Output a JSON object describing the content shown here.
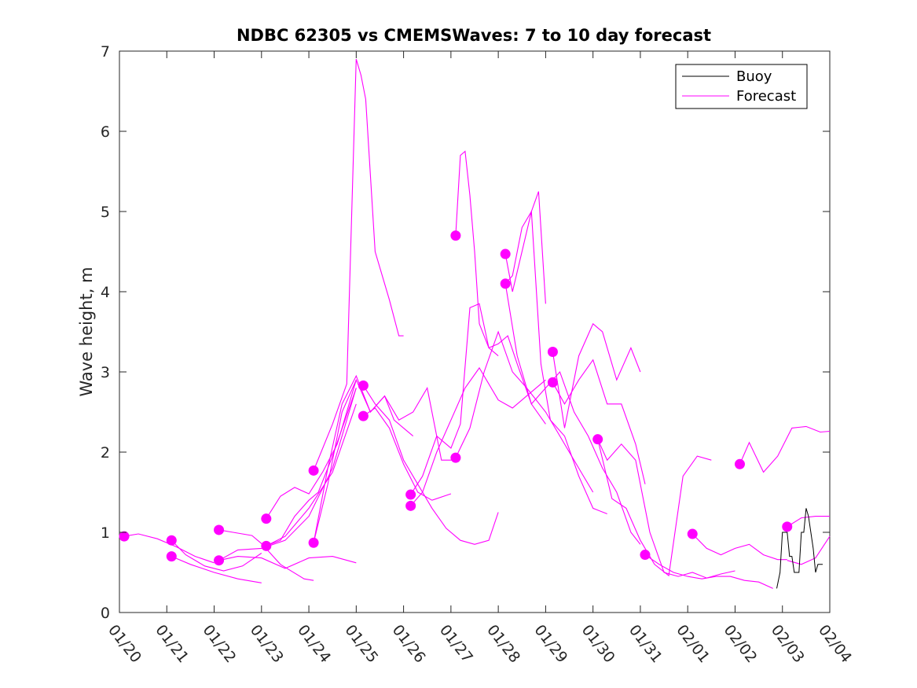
{
  "chart_data": {
    "type": "line",
    "title": "NDBC 62305 vs CMEMSWaves: 7 to 10 day forecast",
    "xlabel": "",
    "ylabel": "Wave height, m",
    "xlim": [
      0,
      15
    ],
    "ylim": [
      0,
      7
    ],
    "grid": false,
    "legend_position": "top-right",
    "x_tick_labels": [
      "01/20",
      "01/21",
      "01/22",
      "01/23",
      "01/24",
      "01/25",
      "01/26",
      "01/27",
      "01/28",
      "01/29",
      "01/30",
      "01/31",
      "02/01",
      "02/02",
      "02/03",
      "02/04"
    ],
    "y_ticks": [
      0,
      1,
      2,
      3,
      4,
      5,
      6,
      7
    ],
    "legend": [
      {
        "name": "Buoy",
        "color": "#000000"
      },
      {
        "name": "Forecast",
        "color": "#ff00ff"
      }
    ],
    "buoy": {
      "name": "Buoy",
      "color": "#000000",
      "x": [
        13.88,
        13.95,
        14.0,
        14.05,
        14.1,
        14.15,
        14.2,
        14.25,
        14.3,
        14.35,
        14.4,
        14.45,
        14.5,
        14.55,
        14.6,
        14.65,
        14.7,
        14.75,
        14.8,
        14.85
      ],
      "y": [
        0.3,
        0.5,
        1.0,
        1.0,
        1.0,
        0.7,
        0.7,
        0.5,
        0.5,
        0.5,
        1.0,
        1.0,
        1.3,
        1.2,
        1.0,
        0.8,
        0.5,
        0.6,
        0.6,
        0.6
      ]
    },
    "forecast_color": "#ff00ff",
    "forecast_series": [
      {
        "x": [
          0.1,
          0.4,
          0.8,
          1.2,
          1.6,
          2.0
        ],
        "y": [
          0.95,
          0.98,
          0.92,
          0.82,
          0.7,
          0.62
        ]
      },
      {
        "x": [
          1.1,
          1.4,
          1.8,
          2.2,
          2.6,
          3.0
        ],
        "y": [
          0.9,
          0.72,
          0.58,
          0.52,
          0.58,
          0.74
        ]
      },
      {
        "x": [
          1.1,
          1.5,
          2.0,
          2.5,
          3.0
        ],
        "y": [
          0.7,
          0.6,
          0.5,
          0.42,
          0.37
        ]
      },
      {
        "x": [
          2.1,
          2.4,
          2.8,
          3.0,
          3.4,
          3.9,
          4.1
        ],
        "y": [
          1.03,
          1.0,
          0.96,
          0.86,
          0.6,
          0.42,
          0.4
        ]
      },
      {
        "x": [
          2.1,
          2.5,
          3.0,
          3.5,
          4.0,
          4.5,
          5.0
        ],
        "y": [
          0.65,
          0.7,
          0.68,
          0.55,
          0.68,
          0.7,
          0.62
        ]
      },
      {
        "x": [
          2.1,
          2.5,
          3.0,
          3.5,
          4.0,
          4.5,
          5.0
        ],
        "y": [
          0.65,
          0.78,
          0.8,
          0.9,
          1.2,
          1.8,
          2.8
        ]
      },
      {
        "x": [
          3.1,
          3.4,
          3.7,
          4.0,
          4.3,
          4.6,
          5.0
        ],
        "y": [
          1.17,
          1.45,
          1.56,
          1.48,
          1.76,
          2.1,
          2.9
        ]
      },
      {
        "x": [
          3.1,
          3.4,
          3.7,
          4.0,
          4.2,
          4.5,
          5.0
        ],
        "y": [
          0.83,
          0.9,
          1.2,
          1.4,
          1.5,
          1.95,
          2.8
        ]
      },
      {
        "x": [
          3.1,
          3.5,
          4.0,
          4.5,
          5.0
        ],
        "y": [
          0.83,
          0.95,
          1.3,
          1.75,
          2.6
        ]
      },
      {
        "x": [
          4.1,
          4.5,
          4.8,
          5.0,
          5.1,
          5.2,
          5.4,
          5.7,
          5.9,
          6.0
        ],
        "y": [
          1.77,
          2.35,
          2.85,
          6.9,
          6.7,
          6.4,
          4.5,
          3.9,
          3.45,
          3.45
        ]
      },
      {
        "x": [
          4.1,
          4.4,
          4.7,
          5.0,
          5.3,
          5.6,
          5.8,
          6.0,
          6.2
        ],
        "y": [
          0.87,
          1.6,
          2.5,
          2.9,
          2.5,
          2.7,
          2.4,
          2.3,
          2.2
        ]
      },
      {
        "x": [
          4.1,
          4.4,
          4.7,
          5.0,
          5.3,
          5.6,
          5.9,
          6.2,
          6.5,
          6.8,
          7.1
        ],
        "y": [
          0.87,
          1.8,
          2.6,
          2.95,
          2.5,
          2.7,
          2.4,
          2.5,
          2.8,
          1.9,
          1.9
        ]
      },
      {
        "x": [
          5.15,
          5.4,
          5.7,
          6.0,
          6.3,
          6.6,
          6.9,
          7.2,
          7.5,
          7.8,
          8.0
        ],
        "y": [
          2.83,
          2.6,
          2.4,
          1.9,
          1.6,
          1.3,
          1.05,
          0.9,
          0.85,
          0.9,
          1.25
        ]
      },
      {
        "x": [
          5.15,
          5.4,
          5.7,
          6.0,
          6.3,
          6.6,
          7.0
        ],
        "y": [
          2.45,
          2.55,
          2.3,
          1.85,
          1.5,
          1.4,
          1.48
        ]
      },
      {
        "x": [
          6.15,
          6.4,
          6.7,
          7.0,
          7.2,
          7.4,
          7.6,
          7.8,
          8.0,
          8.2,
          8.4,
          8.7,
          9.0
        ],
        "y": [
          1.47,
          1.7,
          2.2,
          2.05,
          2.35,
          3.8,
          3.85,
          3.3,
          3.35,
          3.45,
          3.1,
          2.6,
          2.35
        ]
      },
      {
        "x": [
          6.15,
          6.4,
          6.7,
          7.0,
          7.3,
          7.6,
          8.0,
          8.3,
          8.6,
          9.0
        ],
        "y": [
          1.33,
          1.5,
          2.0,
          2.4,
          2.8,
          3.05,
          2.65,
          2.55,
          2.7,
          2.9
        ]
      },
      {
        "x": [
          7.1,
          7.2,
          7.3,
          7.4,
          7.5,
          7.6,
          7.8,
          8.0
        ],
        "y": [
          4.7,
          5.7,
          5.75,
          5.2,
          4.5,
          3.6,
          3.3,
          3.2
        ]
      },
      {
        "x": [
          7.1,
          7.4,
          7.7,
          8.0,
          8.3,
          8.6,
          9.0,
          9.2,
          9.5,
          9.8,
          10.0
        ],
        "y": [
          1.93,
          2.3,
          3.0,
          3.5,
          3.0,
          2.8,
          2.5,
          2.3,
          2.0,
          1.7,
          1.5
        ]
      },
      {
        "x": [
          8.15,
          8.3,
          8.5,
          8.7,
          8.85,
          9.0
        ],
        "y": [
          4.47,
          4.0,
          4.5,
          5.0,
          5.25,
          3.85
        ]
      },
      {
        "x": [
          8.15,
          8.3,
          8.5,
          8.7,
          8.9,
          9.1,
          9.4,
          9.7,
          10.0,
          10.3
        ],
        "y": [
          4.1,
          4.2,
          4.8,
          5.0,
          3.1,
          2.4,
          2.2,
          1.7,
          1.3,
          1.23
        ]
      },
      {
        "x": [
          8.15,
          8.4,
          8.7,
          9.0,
          9.3,
          9.6,
          9.9,
          10.2,
          10.5,
          10.8,
          11.0
        ],
        "y": [
          4.1,
          3.2,
          2.6,
          2.8,
          3.0,
          2.5,
          2.2,
          1.8,
          1.5,
          1.0,
          0.85
        ]
      },
      {
        "x": [
          9.15,
          9.4,
          9.7,
          10.0,
          10.2,
          10.5,
          10.8,
          11.0
        ],
        "y": [
          3.25,
          2.3,
          3.2,
          3.6,
          3.5,
          2.9,
          3.3,
          3.0
        ]
      },
      {
        "x": [
          9.15,
          9.4,
          9.7,
          10.0,
          10.3,
          10.6,
          10.9,
          11.1
        ],
        "y": [
          2.87,
          2.6,
          2.9,
          3.15,
          2.6,
          2.6,
          2.1,
          1.6
        ]
      },
      {
        "x": [
          10.1,
          10.3,
          10.6,
          10.9,
          11.2,
          11.5,
          11.8,
          12.1,
          12.4,
          12.7,
          13.0
        ],
        "y": [
          2.16,
          1.9,
          2.1,
          1.9,
          1.0,
          0.5,
          0.45,
          0.5,
          0.43,
          0.48,
          0.52
        ]
      },
      {
        "x": [
          10.1,
          10.4,
          10.7,
          11.0,
          11.3,
          11.6,
          11.9,
          12.2,
          12.5,
          12.8,
          13.1,
          13.4,
          13.7,
          14.0,
          14.3,
          14.6,
          14.9,
          15.0
        ],
        "y": [
          2.16,
          1.42,
          1.3,
          0.9,
          0.6,
          0.46,
          1.7,
          1.95,
          1.9,
          null,
          null,
          null,
          null,
          null,
          null,
          null,
          null,
          null
        ]
      },
      {
        "x": [
          11.1,
          11.4,
          11.7,
          12.0,
          12.3,
          12.6,
          12.9,
          13.2,
          13.5,
          13.8
        ],
        "y": [
          0.72,
          0.6,
          0.5,
          0.45,
          0.42,
          0.45,
          0.45,
          0.4,
          0.38,
          0.3
        ]
      },
      {
        "x": [
          12.1,
          12.4,
          12.7,
          13.0,
          13.3,
          13.6,
          13.9,
          14.1
        ],
        "y": [
          0.98,
          0.8,
          0.72,
          0.8,
          0.85,
          0.72,
          0.66,
          0.66
        ]
      },
      {
        "x": [
          13.1,
          13.3,
          13.6,
          13.9,
          14.2,
          14.5,
          14.8,
          15.0
        ],
        "y": [
          1.85,
          2.12,
          1.75,
          1.95,
          2.3,
          2.32,
          2.25,
          2.26
        ]
      },
      {
        "x": [
          14.1,
          14.4,
          14.7,
          15.0
        ],
        "y": [
          1.07,
          1.18,
          1.2,
          1.2
        ]
      },
      {
        "x": [
          14.1,
          14.4,
          14.7,
          15.0
        ],
        "y": [
          0.65,
          0.6,
          0.68,
          0.95
        ]
      }
    ],
    "forecast_start_points": [
      {
        "x": 0.1,
        "y": 0.95
      },
      {
        "x": 1.1,
        "y": 0.9
      },
      {
        "x": 1.1,
        "y": 0.7
      },
      {
        "x": 2.1,
        "y": 1.03
      },
      {
        "x": 2.1,
        "y": 0.65
      },
      {
        "x": 3.1,
        "y": 1.17
      },
      {
        "x": 3.1,
        "y": 0.83
      },
      {
        "x": 4.1,
        "y": 1.77
      },
      {
        "x": 4.1,
        "y": 0.87
      },
      {
        "x": 5.15,
        "y": 2.83
      },
      {
        "x": 5.15,
        "y": 2.45
      },
      {
        "x": 6.15,
        "y": 1.47
      },
      {
        "x": 6.15,
        "y": 1.33
      },
      {
        "x": 7.1,
        "y": 4.7
      },
      {
        "x": 7.1,
        "y": 1.93
      },
      {
        "x": 8.15,
        "y": 4.47
      },
      {
        "x": 8.15,
        "y": 4.1
      },
      {
        "x": 9.15,
        "y": 3.25
      },
      {
        "x": 9.15,
        "y": 2.87
      },
      {
        "x": 10.1,
        "y": 2.16
      },
      {
        "x": 11.1,
        "y": 0.72
      },
      {
        "x": 12.1,
        "y": 0.98
      },
      {
        "x": 13.1,
        "y": 1.85
      },
      {
        "x": 14.1,
        "y": 1.07
      }
    ]
  }
}
